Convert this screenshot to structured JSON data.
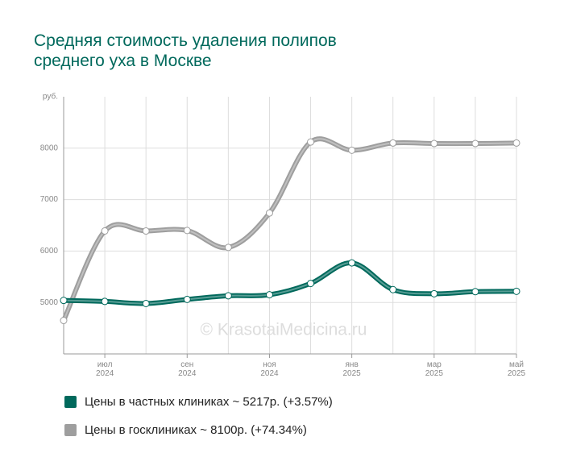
{
  "chart_data": {
    "type": "line",
    "title": "Средняя стоимость удаления полипов среднего уха в Москве",
    "y_unit_label": "руб.",
    "watermark": "© KrasotaiMedicina.ru",
    "categories": [
      null,
      "июл 2024",
      null,
      "сен 2024",
      null,
      "ноя 2024",
      null,
      "янв 2025",
      null,
      "мар 2025",
      null,
      "май 2025"
    ],
    "series": [
      {
        "name": "Цены в частных клиниках ~ 5217р. (+3.57%)",
        "color": "#00695c",
        "values": [
          5040,
          5020,
          4980,
          5060,
          5130,
          5150,
          5370,
          5770,
          5250,
          5170,
          5210,
          5217
        ]
      },
      {
        "name": "Цены в госклиниках ~ 8100р. (+74.34%)",
        "color": "#9e9e9e",
        "values": [
          4650,
          6390,
          6390,
          6400,
          6070,
          6740,
          8120,
          7960,
          8100,
          8090,
          8090,
          8100
        ]
      }
    ],
    "ylim": [
      4000,
      9000
    ],
    "yticks": [
      5000,
      6000,
      7000,
      8000
    ],
    "grid": true
  }
}
